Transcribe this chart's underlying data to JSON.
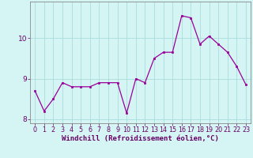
{
  "x": [
    0,
    1,
    2,
    3,
    4,
    5,
    6,
    7,
    8,
    9,
    10,
    11,
    12,
    13,
    14,
    15,
    16,
    17,
    18,
    19,
    20,
    21,
    22,
    23
  ],
  "y": [
    8.7,
    8.2,
    8.5,
    8.9,
    8.8,
    8.8,
    8.8,
    8.9,
    8.9,
    8.9,
    8.15,
    9.0,
    8.9,
    9.5,
    9.65,
    9.65,
    10.55,
    10.5,
    9.85,
    10.05,
    9.85,
    9.65,
    9.3,
    8.85
  ],
  "line_color": "#990099",
  "marker_color": "#990099",
  "bg_color": "#d5f5f5",
  "grid_color": "#aadddd",
  "xlabel": "Windchill (Refroidissement éolien,°C)",
  "xlabel_fontsize": 6.5,
  "tick_fontsize": 5.8,
  "ytick_fontsize": 6.5,
  "ylim": [
    7.9,
    10.9
  ],
  "yticks": [
    8,
    9,
    10
  ],
  "xticks": [
    0,
    1,
    2,
    3,
    4,
    5,
    6,
    7,
    8,
    9,
    10,
    11,
    12,
    13,
    14,
    15,
    16,
    17,
    18,
    19,
    20,
    21,
    22,
    23
  ]
}
